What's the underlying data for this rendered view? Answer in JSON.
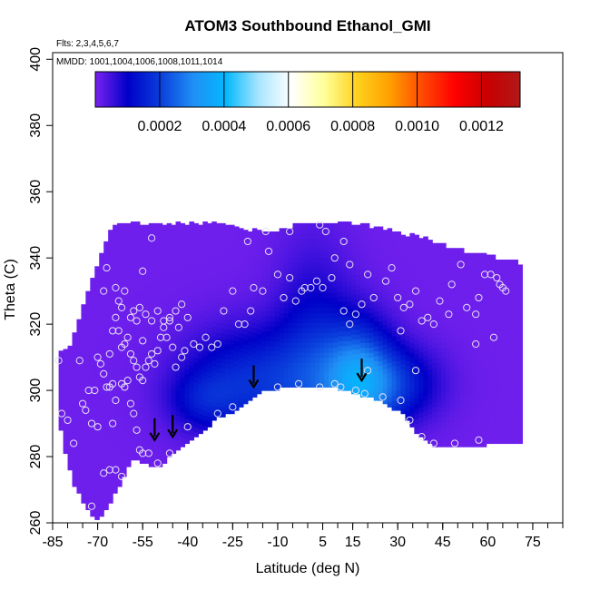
{
  "chart_data": {
    "type": "heatmap",
    "title": "ATOM3 Southbound Ethanol_GMI",
    "flights_note": "Flts: 2,3,4,5,6,7",
    "mmdd_note": "MMDD: 1001,1004,1006,1008,1011,1014",
    "xlabel": "Latitude (deg N)",
    "ylabel": "Theta (C)",
    "xlim": [
      -85,
      85
    ],
    "ylim": [
      260,
      402
    ],
    "x_ticks": [
      -85,
      -70,
      -55,
      -40,
      -25,
      -10,
      5,
      15,
      30,
      45,
      60,
      75
    ],
    "x_tick_labels": [
      "-85",
      "-70",
      "-55",
      "-40",
      "-25",
      "-10",
      "5",
      "15",
      "30",
      "45",
      "60",
      "75"
    ],
    "x_minor_tick_step": 5,
    "y_ticks": [
      260,
      280,
      300,
      320,
      340,
      360,
      380,
      400
    ],
    "y_tick_labels": [
      "260",
      "280",
      "300",
      "320",
      "340",
      "360",
      "380",
      "400"
    ],
    "colorbar": {
      "range": [
        0,
        0.00132
      ],
      "ticks": [
        0.0002,
        0.0004,
        0.0006,
        0.0008,
        0.001,
        0.0012
      ],
      "tick_labels": [
        "0.0002",
        "0.0004",
        "0.0006",
        "0.0008",
        "0.0010",
        "0.0012"
      ],
      "colors": [
        "#7a22f0",
        "#0000c8",
        "#0a3fdc",
        "#1f8ff5",
        "#04b8ff",
        "#a8e6ff",
        "#ffffff",
        "#ffff9a",
        "#ffd21e",
        "#ffa000",
        "#ff4a00",
        "#ff0000",
        "#c80000",
        "#b01818"
      ]
    },
    "field": {
      "background_value": 1e-05,
      "upper_boundary": [
        [
          -83,
          311
        ],
        [
          -80,
          312
        ],
        [
          -77,
          318
        ],
        [
          -74,
          327
        ],
        [
          -71,
          336
        ],
        [
          -68,
          342
        ],
        [
          -65,
          349
        ],
        [
          -60,
          350
        ],
        [
          -50,
          350
        ],
        [
          -40,
          350
        ],
        [
          -30,
          350
        ],
        [
          -20,
          348
        ],
        [
          -10,
          348
        ],
        [
          0,
          350
        ],
        [
          10,
          350
        ],
        [
          20,
          349
        ],
        [
          30,
          347
        ],
        [
          40,
          345
        ],
        [
          50,
          342
        ],
        [
          60,
          340
        ],
        [
          70,
          338
        ],
        [
          72,
          337
        ]
      ],
      "lower_boundary": [
        [
          -83,
          293
        ],
        [
          -81,
          282
        ],
        [
          -78,
          272
        ],
        [
          -75,
          267
        ],
        [
          -72,
          263
        ],
        [
          -70,
          261
        ],
        [
          -66,
          266
        ],
        [
          -62,
          273
        ],
        [
          -59,
          279
        ],
        [
          -56,
          279
        ],
        [
          -53,
          278
        ],
        [
          -50,
          277
        ],
        [
          -45,
          281
        ],
        [
          -40,
          285
        ],
        [
          -35,
          288
        ],
        [
          -30,
          292
        ],
        [
          -25,
          294
        ],
        [
          -20,
          297
        ],
        [
          -15,
          300
        ],
        [
          -10,
          301
        ],
        [
          0,
          301
        ],
        [
          10,
          301
        ],
        [
          18,
          299
        ],
        [
          25,
          297
        ],
        [
          32,
          293
        ],
        [
          37,
          287
        ],
        [
          42,
          284
        ],
        [
          50,
          283
        ],
        [
          60,
          284
        ],
        [
          70,
          284
        ],
        [
          72,
          285
        ]
      ],
      "enhancements": [
        {
          "lat": -18,
          "theta": 303,
          "sig_lat": 16,
          "sig_theta": 11,
          "value": 0.00016
        },
        {
          "lat": 2,
          "theta": 308,
          "sig_lat": 9,
          "sig_theta": 22,
          "value": 0.00012
        },
        {
          "lat": 17,
          "theta": 303,
          "sig_lat": 8,
          "sig_theta": 12,
          "value": 0.00028
        },
        {
          "lat": 30,
          "theta": 302,
          "sig_lat": 10,
          "sig_theta": 8,
          "value": 0.00014
        },
        {
          "lat": -35,
          "theta": 297,
          "sig_lat": 8,
          "sig_theta": 6,
          "value": 8e-05
        }
      ]
    },
    "observations": [
      [
        -83,
        309
      ],
      [
        -82,
        293
      ],
      [
        -80,
        291
      ],
      [
        -78,
        284
      ],
      [
        -76,
        309
      ],
      [
        -74,
        294
      ],
      [
        -72,
        290
      ],
      [
        -70,
        289
      ],
      [
        -69,
        308
      ],
      [
        -68,
        305
      ],
      [
        -67,
        301
      ],
      [
        -66,
        301
      ],
      [
        -65,
        302
      ],
      [
        -64,
        297
      ],
      [
        -62,
        302
      ],
      [
        -61,
        301
      ],
      [
        -60,
        303
      ],
      [
        -59,
        296
      ],
      [
        -58,
        293
      ],
      [
        -57,
        288
      ],
      [
        -56,
        282
      ],
      [
        -55,
        281
      ],
      [
        -66,
        311
      ],
      [
        -65,
        318
      ],
      [
        -64,
        322
      ],
      [
        -63,
        318
      ],
      [
        -62,
        313
      ],
      [
        -61,
        314
      ],
      [
        -60,
        316
      ],
      [
        -59,
        311
      ],
      [
        -58,
        309
      ],
      [
        -57,
        307
      ],
      [
        -56,
        304
      ],
      [
        -55,
        303
      ],
      [
        -54,
        307
      ],
      [
        -53,
        309
      ],
      [
        -52,
        311
      ],
      [
        -51,
        308
      ],
      [
        -50,
        312
      ],
      [
        -49,
        316
      ],
      [
        -48,
        319
      ],
      [
        -47,
        316
      ],
      [
        -46,
        321
      ],
      [
        -45,
        313
      ],
      [
        -44,
        307
      ],
      [
        -43,
        319
      ],
      [
        -42,
        310
      ],
      [
        -41,
        312
      ],
      [
        -64,
        331
      ],
      [
        -63,
        327
      ],
      [
        -62,
        325
      ],
      [
        -61,
        330
      ],
      [
        -59,
        322
      ],
      [
        -58,
        324
      ],
      [
        -57,
        321
      ],
      [
        -56,
        325
      ],
      [
        -55,
        315
      ],
      [
        -54,
        323
      ],
      [
        -52,
        321
      ],
      [
        -50,
        324
      ],
      [
        -48,
        321
      ],
      [
        -46,
        322
      ],
      [
        -44,
        324
      ],
      [
        -42,
        326
      ],
      [
        -40,
        322
      ],
      [
        -38,
        314
      ],
      [
        -36,
        313
      ],
      [
        -34,
        316
      ],
      [
        -32,
        313
      ],
      [
        -55,
        336
      ],
      [
        -52,
        346
      ],
      [
        -67,
        337
      ],
      [
        -68,
        330
      ],
      [
        -66,
        276
      ],
      [
        -64,
        276
      ],
      [
        -62,
        274
      ],
      [
        -68,
        275
      ],
      [
        -72,
        265
      ],
      [
        -53,
        281
      ],
      [
        -50,
        278
      ],
      [
        -46,
        281
      ],
      [
        -40,
        289
      ],
      [
        -30,
        293
      ],
      [
        -25,
        295
      ],
      [
        -10,
        301
      ],
      [
        -3,
        302
      ],
      [
        4,
        301
      ],
      [
        9,
        302
      ],
      [
        11,
        301
      ],
      [
        16,
        300
      ],
      [
        19,
        299
      ],
      [
        25,
        298
      ],
      [
        31,
        297
      ],
      [
        34,
        291
      ],
      [
        38,
        286
      ],
      [
        42,
        284
      ],
      [
        49,
        284
      ],
      [
        57,
        285
      ],
      [
        -30,
        314
      ],
      [
        -28,
        324
      ],
      [
        -25,
        330
      ],
      [
        -23,
        320
      ],
      [
        -21,
        320
      ],
      [
        -19,
        324
      ],
      [
        -18,
        331
      ],
      [
        -15,
        330
      ],
      [
        -13,
        342
      ],
      [
        -10,
        335
      ],
      [
        -8,
        328
      ],
      [
        -6,
        334
      ],
      [
        -4,
        327
      ],
      [
        -2,
        330
      ],
      [
        -1,
        331
      ],
      [
        1,
        331
      ],
      [
        3,
        333
      ],
      [
        5,
        331
      ],
      [
        8,
        334
      ],
      [
        9,
        340
      ],
      [
        12,
        324
      ],
      [
        14,
        320
      ],
      [
        14,
        338
      ],
      [
        16,
        323
      ],
      [
        18,
        326
      ],
      [
        20,
        335
      ],
      [
        22,
        328
      ],
      [
        26,
        333
      ],
      [
        28,
        337
      ],
      [
        30,
        328
      ],
      [
        31,
        318
      ],
      [
        32,
        325
      ],
      [
        34,
        326
      ],
      [
        36,
        330
      ],
      [
        38,
        321
      ],
      [
        40,
        322
      ],
      [
        42,
        320
      ],
      [
        44,
        327
      ],
      [
        47,
        323
      ],
      [
        48,
        332
      ],
      [
        51,
        338
      ],
      [
        53,
        325
      ],
      [
        56,
        323
      ],
      [
        57,
        328
      ],
      [
        59,
        335
      ],
      [
        61,
        335
      ],
      [
        63,
        334
      ],
      [
        65,
        331
      ],
      [
        66,
        330
      ],
      [
        -20,
        345
      ],
      [
        -14,
        348
      ],
      [
        -6,
        348
      ],
      [
        4,
        350
      ],
      [
        6,
        348
      ],
      [
        12,
        345
      ],
      [
        -70,
        310
      ],
      [
        -71,
        300
      ],
      [
        -73,
        300
      ],
      [
        -75,
        296
      ],
      [
        -65,
        290
      ],
      [
        56,
        314
      ],
      [
        62,
        316
      ],
      [
        64,
        332
      ],
      [
        36,
        306
      ],
      [
        20,
        306
      ]
    ],
    "arrows": [
      {
        "lat": -51,
        "theta": 285
      },
      {
        "lat": -45,
        "theta": 286
      },
      {
        "lat": -18,
        "theta": 301
      },
      {
        "lat": 18,
        "theta": 303
      }
    ]
  }
}
